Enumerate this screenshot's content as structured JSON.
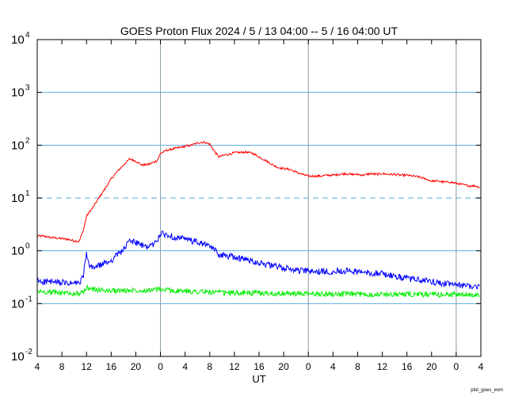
{
  "chart_data": {
    "type": "line",
    "title": "GOES Proton Flux   2024 /  5 / 13   04:00 --  5 / 16   04:00   UT",
    "xlabel": "UT",
    "ylabel": "",
    "yscale": "log",
    "ylim": [
      0.01,
      10000
    ],
    "xlim_hours": [
      0,
      72
    ],
    "x_unit": "hours after 2024-05-13 04:00 UT",
    "y_ticks": [
      {
        "base": "10",
        "exp": "-2",
        "value": 0.01
      },
      {
        "base": "10",
        "exp": "-1",
        "value": 0.1
      },
      {
        "base": "10",
        "exp": "0",
        "value": 1
      },
      {
        "base": "10",
        "exp": "1",
        "value": 10
      },
      {
        "base": "10",
        "exp": "2",
        "value": 100
      },
      {
        "base": "10",
        "exp": "3",
        "value": 1000
      },
      {
        "base": "10",
        "exp": "4",
        "value": 10000
      }
    ],
    "x_ticks": [
      {
        "label": "4",
        "hour": 0
      },
      {
        "label": "8",
        "hour": 4
      },
      {
        "label": "12",
        "hour": 8
      },
      {
        "label": "16",
        "hour": 12
      },
      {
        "label": "20",
        "hour": 16
      },
      {
        "label": "0",
        "hour": 20
      },
      {
        "label": "4",
        "hour": 24
      },
      {
        "label": "8",
        "hour": 28
      },
      {
        "label": "12",
        "hour": 32
      },
      {
        "label": "16",
        "hour": 36
      },
      {
        "label": "20",
        "hour": 40
      },
      {
        "label": "0",
        "hour": 44
      },
      {
        "label": "4",
        "hour": 48
      },
      {
        "label": "8",
        "hour": 52
      },
      {
        "label": "12",
        "hour": 56
      },
      {
        "label": "16",
        "hour": 60
      },
      {
        "label": "20",
        "hour": 64
      },
      {
        "label": "0",
        "hour": 68
      },
      {
        "label": "4",
        "hour": 72
      }
    ],
    "day_boundaries_hours": [
      20,
      44,
      68
    ],
    "threshold": {
      "value": 10,
      "style": "dashed",
      "color": "#8cc8ec"
    },
    "grid": {
      "horizontal_decades": [
        0.1,
        1,
        100,
        1000
      ],
      "color": "#5aaee0"
    },
    "series": [
      {
        "color": "#ff0000",
        "x": [
          0,
          1,
          2,
          3,
          4,
          5,
          6,
          6.8,
          7.5,
          8,
          8.5,
          9,
          10,
          11,
          12,
          13,
          14,
          15,
          16,
          17,
          18,
          19,
          19.5,
          20,
          21,
          22,
          23,
          24,
          25,
          26,
          27,
          28,
          29,
          29.5,
          30,
          31,
          32,
          33,
          34,
          35,
          36,
          37,
          38,
          39,
          40,
          41,
          42,
          43,
          44,
          45,
          46,
          47,
          48,
          49,
          50,
          51,
          52,
          53,
          54,
          55,
          56,
          57,
          58,
          59,
          60,
          61,
          62,
          63,
          64,
          65,
          66,
          67,
          68,
          69,
          70,
          71,
          71.8
        ],
        "y": [
          1.9,
          1.9,
          1.8,
          1.75,
          1.7,
          1.65,
          1.55,
          1.5,
          2.5,
          4.5,
          5.5,
          6.5,
          10,
          15,
          23,
          32,
          42,
          55,
          50,
          42,
          43,
          48,
          52,
          70,
          80,
          85,
          90,
          95,
          100,
          110,
          115,
          105,
          70,
          60,
          63,
          67,
          72,
          73,
          74,
          70,
          60,
          52,
          44,
          38,
          36,
          35,
          31,
          28,
          26,
          26,
          26,
          27,
          27,
          28,
          29,
          28,
          28,
          27,
          29,
          28,
          29,
          28,
          28,
          27,
          27,
          26,
          25,
          23,
          21,
          21,
          20,
          20,
          19,
          18,
          17,
          17,
          16
        ]
      },
      {
        "color": "#0000ff",
        "x": [
          0,
          1,
          2,
          3,
          4,
          5,
          6,
          7,
          7.5,
          8,
          8.5,
          9,
          10,
          11,
          12,
          13,
          14,
          15,
          16,
          17,
          18,
          19,
          19.5,
          20,
          21,
          22,
          23,
          24,
          25,
          26,
          27,
          28,
          29,
          29.5,
          30,
          31,
          32,
          33,
          34,
          35,
          36,
          37,
          38,
          39,
          40,
          41,
          42,
          43,
          44,
          45,
          46,
          47,
          48,
          49,
          50,
          51,
          52,
          53,
          54,
          55,
          56,
          57,
          58,
          59,
          60,
          61,
          62,
          63,
          64,
          65,
          66,
          67,
          68,
          69,
          70,
          71,
          71.8
        ],
        "y": [
          0.27,
          0.26,
          0.26,
          0.25,
          0.25,
          0.24,
          0.24,
          0.25,
          0.35,
          0.85,
          0.5,
          0.48,
          0.52,
          0.58,
          0.65,
          0.85,
          1.05,
          1.55,
          1.45,
          1.25,
          1.2,
          1.35,
          1.6,
          2.1,
          2.0,
          1.85,
          1.75,
          1.65,
          1.55,
          1.45,
          1.35,
          1.2,
          1.0,
          0.85,
          0.82,
          0.8,
          0.76,
          0.72,
          0.68,
          0.64,
          0.6,
          0.56,
          0.52,
          0.5,
          0.47,
          0.45,
          0.43,
          0.42,
          0.41,
          0.4,
          0.4,
          0.4,
          0.41,
          0.42,
          0.42,
          0.41,
          0.4,
          0.39,
          0.38,
          0.38,
          0.37,
          0.35,
          0.33,
          0.31,
          0.3,
          0.29,
          0.28,
          0.27,
          0.26,
          0.25,
          0.24,
          0.23,
          0.23,
          0.22,
          0.22,
          0.21,
          0.21
        ]
      },
      {
        "color": "#00ee00",
        "x": [
          0,
          2,
          4,
          6,
          7.5,
          8,
          10,
          12,
          14,
          16,
          18,
          20,
          22,
          24,
          26,
          28,
          30,
          32,
          34,
          36,
          38,
          40,
          42,
          44,
          46,
          48,
          50,
          52,
          54,
          56,
          58,
          60,
          62,
          64,
          66,
          68,
          70,
          71.8
        ],
        "y": [
          0.17,
          0.165,
          0.16,
          0.155,
          0.16,
          0.2,
          0.18,
          0.175,
          0.175,
          0.18,
          0.18,
          0.185,
          0.175,
          0.17,
          0.17,
          0.165,
          0.16,
          0.16,
          0.16,
          0.158,
          0.156,
          0.155,
          0.154,
          0.153,
          0.152,
          0.152,
          0.151,
          0.151,
          0.15,
          0.15,
          0.15,
          0.149,
          0.149,
          0.148,
          0.148,
          0.148,
          0.148,
          0.148
        ]
      }
    ]
  },
  "footer_tag": "plot_goes_evm"
}
